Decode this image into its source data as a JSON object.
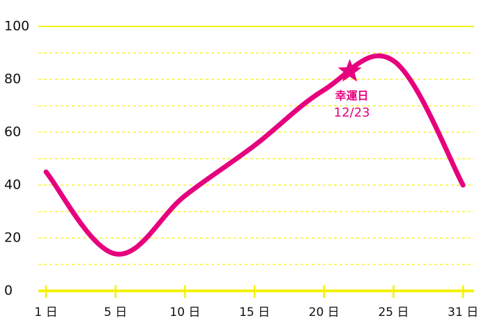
{
  "chart_data": {
    "type": "line",
    "categories": [
      "1 日",
      "5 日",
      "10 日",
      "15 日",
      "20 日",
      "25 日",
      "31 日"
    ],
    "series": [
      {
        "color": "#e6007e",
        "values": [
          45,
          14,
          36,
          55,
          76,
          87,
          40
        ]
      }
    ],
    "ylim": [
      0,
      100
    ],
    "yticks": [
      0,
      20,
      40,
      60,
      80,
      100
    ],
    "minor_yticks": [
      10,
      30,
      50,
      70,
      90
    ],
    "grid": true,
    "axis_color": "#f2f200",
    "annotation": {
      "label": "幸運日",
      "date": "12/23",
      "value": 83,
      "color": "#e6007e"
    }
  }
}
